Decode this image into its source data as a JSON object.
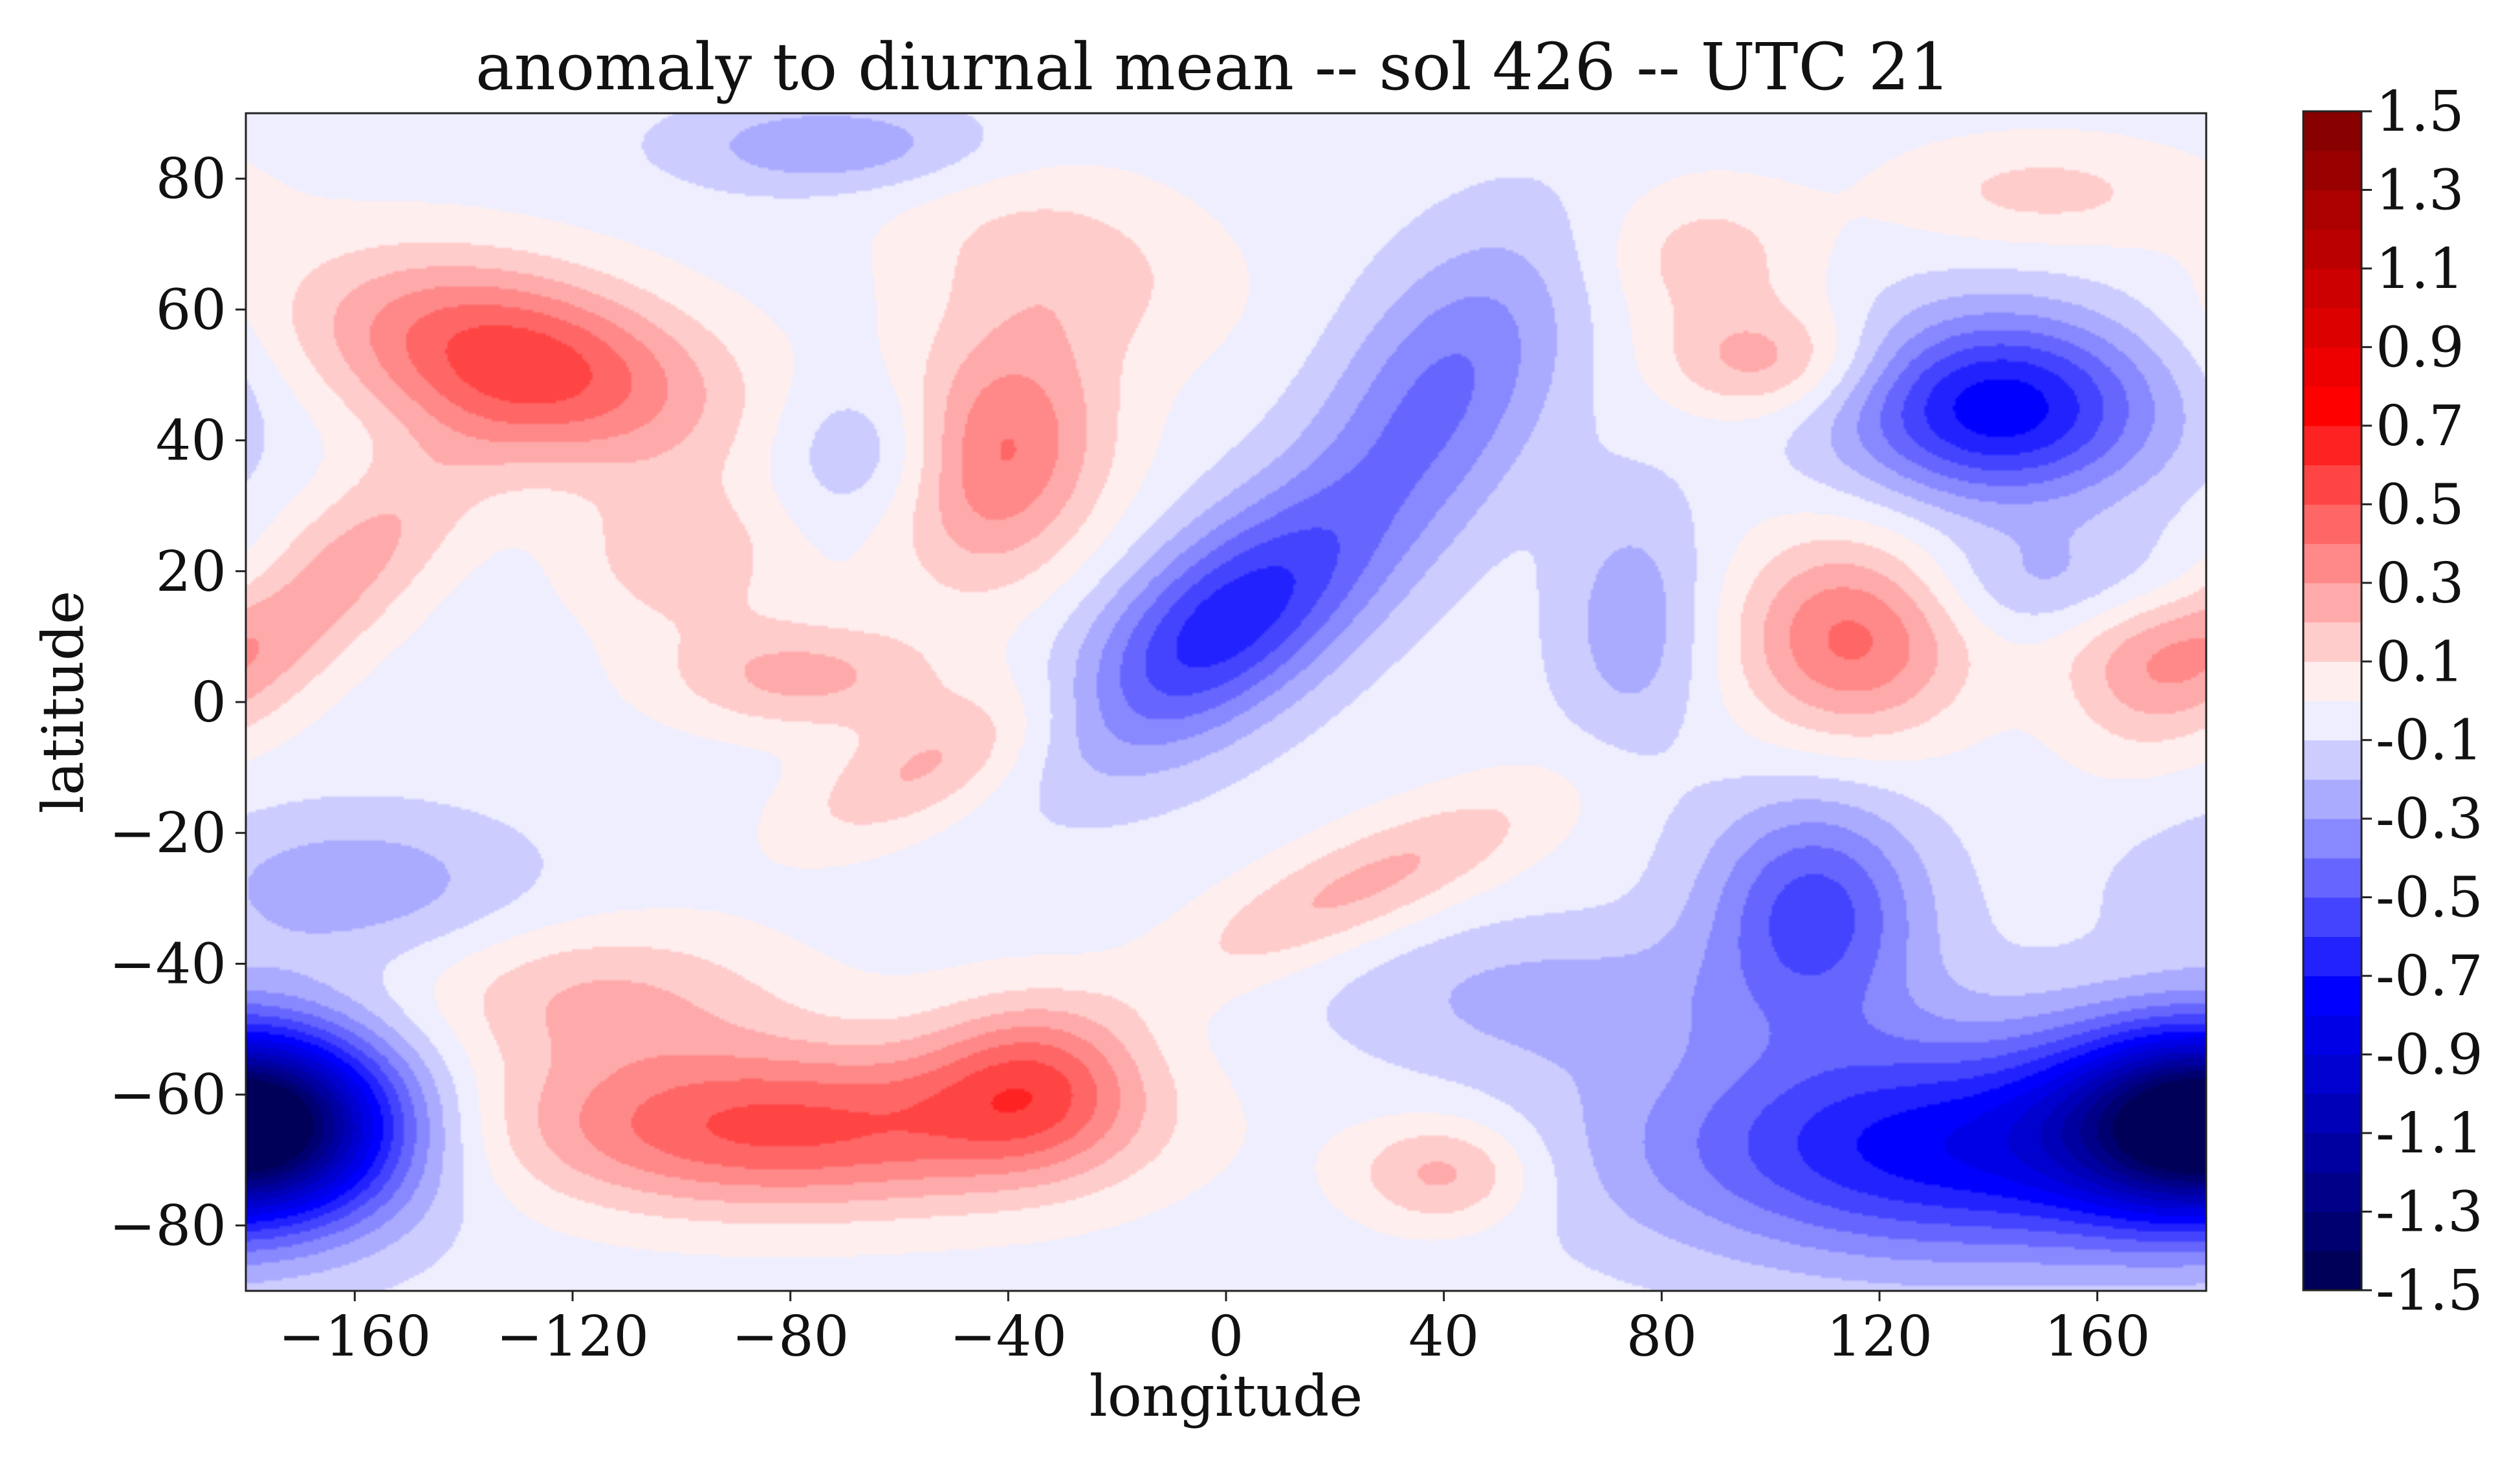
{
  "chart_data": {
    "type": "heatmap",
    "title": "anomaly to diurnal mean -- sol 426 -- UTC 21",
    "xlabel": "longitude",
    "ylabel": "latitude",
    "xlim": [
      -180,
      180
    ],
    "ylim": [
      -90,
      90
    ],
    "x_ticks": [
      -160,
      -120,
      -80,
      -40,
      0,
      40,
      80,
      120,
      160
    ],
    "x_tick_labels": [
      "−160",
      "−120",
      "−80",
      "−40",
      "0",
      "40",
      "80",
      "120",
      "160"
    ],
    "y_ticks": [
      80,
      60,
      40,
      20,
      0,
      -20,
      -40,
      -60,
      -80
    ],
    "y_tick_labels": [
      "80",
      "60",
      "40",
      "20",
      "0",
      "−20",
      "−40",
      "−60",
      "−80"
    ],
    "colorbar": {
      "levels": [
        -1.5,
        -1.4,
        -1.3,
        -1.2,
        -1.1,
        -1.0,
        -0.9,
        -0.8,
        -0.7,
        -0.6,
        -0.5,
        -0.4,
        -0.3,
        -0.2,
        -0.1,
        0.0,
        0.1,
        0.2,
        0.3,
        0.4,
        0.5,
        0.6,
        0.7,
        0.8,
        0.9,
        1.0,
        1.1,
        1.2,
        1.3,
        1.4,
        1.5
      ],
      "tick_labels": [
        "1.5",
        "1.3",
        "1.1",
        "0.9",
        "0.7",
        "0.5",
        "0.3",
        "0.1",
        "-0.1",
        "-0.3",
        "-0.5",
        "-0.7",
        "-0.9",
        "-1.1",
        "-1.3",
        "-1.5"
      ],
      "colormap": "seismic",
      "min_color": "#00004c",
      "mid_color": "#ffffff",
      "max_color": "#800000"
    },
    "background_value": -0.05,
    "features": [
      {
        "lon": -130,
        "lat": 52,
        "amp": 0.62,
        "slon": 26,
        "slat": 10,
        "rot": -10
      },
      {
        "lon": -165,
        "lat": 18,
        "amp": 0.32,
        "slon": 22,
        "slat": 8,
        "rot": 35
      },
      {
        "lon": -100,
        "lat": 22,
        "amp": 0.22,
        "slon": 14,
        "slat": 8,
        "rot": 0
      },
      {
        "lon": -42,
        "lat": 38,
        "amp": 0.48,
        "slon": 15,
        "slat": 13,
        "rot": 40
      },
      {
        "lon": -30,
        "lat": 68,
        "amp": 0.18,
        "slon": 22,
        "slat": 10,
        "rot": -10
      },
      {
        "lon": -78,
        "lat": 4,
        "amp": 0.28,
        "slon": 18,
        "slat": 6,
        "rot": 0
      },
      {
        "lon": -55,
        "lat": -10,
        "amp": 0.26,
        "slon": 18,
        "slat": 6,
        "rot": 20
      },
      {
        "lon": 25,
        "lat": -28,
        "amp": 0.28,
        "slon": 26,
        "slat": 6,
        "rot": 20
      },
      {
        "lon": 100,
        "lat": 52,
        "amp": 0.3,
        "slon": 14,
        "slat": 6,
        "rot": 0
      },
      {
        "lon": 88,
        "lat": 68,
        "amp": 0.2,
        "slon": 14,
        "slat": 8,
        "rot": 0
      },
      {
        "lon": 115,
        "lat": 10,
        "amp": 0.48,
        "slon": 15,
        "slat": 11,
        "rot": 0
      },
      {
        "lon": 168,
        "lat": 8,
        "amp": 0.26,
        "slon": 12,
        "slat": 9,
        "rot": 0
      },
      {
        "lon": 150,
        "lat": 78,
        "amp": 0.18,
        "slon": 20,
        "slat": 6,
        "rot": 0
      },
      {
        "lon": -82,
        "lat": -65,
        "amp": 0.58,
        "slon": 38,
        "slat": 9,
        "rot": 0
      },
      {
        "lon": -35,
        "lat": -58,
        "amp": 0.42,
        "slon": 14,
        "slat": 9,
        "rot": 0
      },
      {
        "lon": 40,
        "lat": -72,
        "amp": 0.3,
        "slon": 12,
        "slat": 6,
        "rot": 0
      },
      {
        "lon": -115,
        "lat": -45,
        "amp": 0.25,
        "slon": 24,
        "slat": 8,
        "rot": 0
      },
      {
        "lon": 0,
        "lat": 12,
        "amp": -0.62,
        "slon": 22,
        "slat": 10,
        "rot": 30
      },
      {
        "lon": 40,
        "lat": 48,
        "amp": -0.36,
        "slon": 20,
        "slat": 12,
        "rot": 45
      },
      {
        "lon": 142,
        "lat": 45,
        "amp": -0.72,
        "slon": 20,
        "slat": 10,
        "rot": 0
      },
      {
        "lon": -72,
        "lat": 85,
        "amp": -0.24,
        "slon": 20,
        "slat": 5,
        "rot": 0
      },
      {
        "lon": -65,
        "lat": 38,
        "amp": -0.22,
        "slon": 12,
        "slat": 8,
        "rot": 0
      },
      {
        "lon": -176,
        "lat": -65,
        "amp": -0.82,
        "slon": 18,
        "slat": 10,
        "rot": 0
      },
      {
        "lon": -160,
        "lat": -28,
        "amp": -0.22,
        "slon": 22,
        "slat": 8,
        "rot": 0
      },
      {
        "lon": 108,
        "lat": -32,
        "amp": -0.5,
        "slon": 14,
        "slat": 12,
        "rot": 0
      },
      {
        "lon": 135,
        "lat": -68,
        "amp": -0.72,
        "slon": 40,
        "slat": 12,
        "rot": 0
      },
      {
        "lon": 178,
        "lat": -63,
        "amp": -0.58,
        "slon": 18,
        "slat": 10,
        "rot": 0
      },
      {
        "lon": 75,
        "lat": 12,
        "amp": -0.22,
        "slon": 10,
        "slat": 14,
        "rot": 0
      },
      {
        "lon": 155,
        "lat": 18,
        "amp": -0.2,
        "slon": 20,
        "slat": 6,
        "rot": 0
      },
      {
        "lon": 60,
        "lat": -45,
        "amp": -0.18,
        "slon": 28,
        "slat": 8,
        "rot": 0
      }
    ]
  }
}
